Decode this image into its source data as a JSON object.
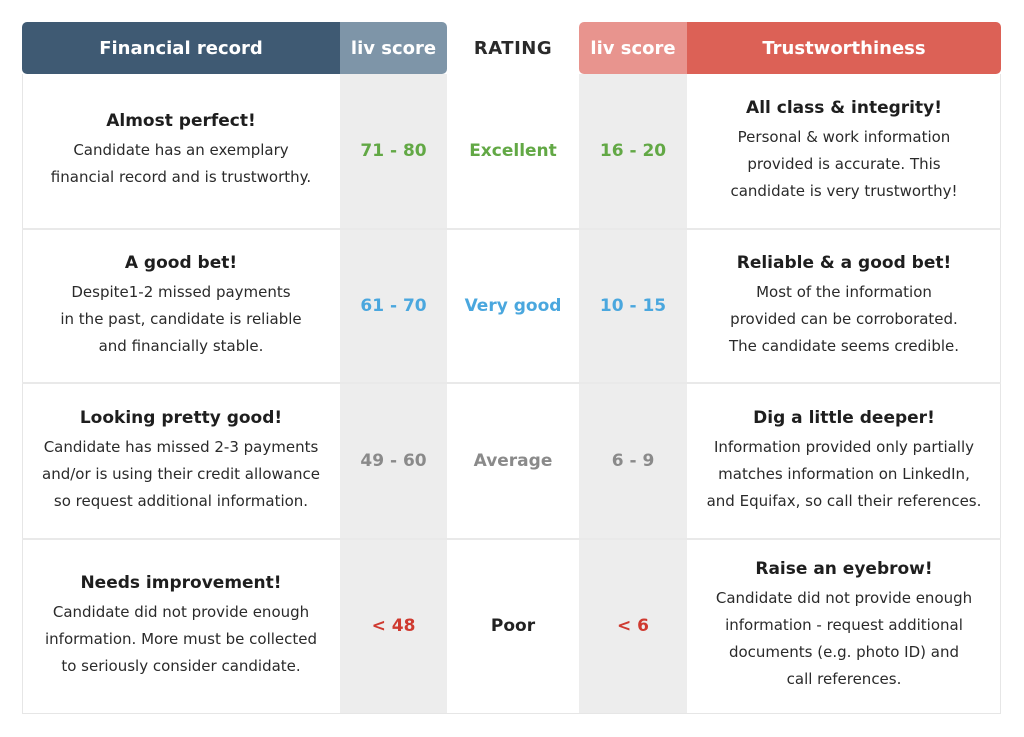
{
  "headers": {
    "financial": "Financial record",
    "liv_score_left": "liv score",
    "rating": "RATING",
    "liv_score_right": "liv score",
    "trust": "Trustworthiness"
  },
  "colors": {
    "financial_header": "#3f5a73",
    "liv_left_header": "#7e95a8",
    "liv_right_header": "#e8948e",
    "trust_header": "#dc6156",
    "excellent": "#62a845",
    "very_good": "#4aa7de",
    "average": "#8a8a8a",
    "poor": "#cf3a30"
  },
  "rows": [
    {
      "fin_title": "Almost perfect!",
      "fin_lines": [
        "Candidate has an exemplary",
        "financial record and is trustworthy."
      ],
      "fin_score": "71 - 80",
      "rating": "Excellent",
      "trust_score": "16 - 20",
      "trust_title": "All class & integrity!",
      "trust_lines": [
        "Personal & work information",
        "provided is accurate. This",
        "candidate is very trustworthy!"
      ]
    },
    {
      "fin_title": "A good bet!",
      "fin_lines": [
        "Despite1-2 missed payments",
        "in the past, candidate is reliable",
        "and financially stable."
      ],
      "fin_score": "61 - 70",
      "rating": "Very good",
      "trust_score": "10 - 15",
      "trust_title": "Reliable & a good bet!",
      "trust_lines": [
        "Most of the information",
        "provided can be corroborated.",
        "The candidate seems credible."
      ]
    },
    {
      "fin_title": "Looking pretty good!",
      "fin_lines": [
        "Candidate has missed 2-3 payments",
        "and/or is using their credit allowance",
        "so request additional information."
      ],
      "fin_score": "49 - 60",
      "rating": "Average",
      "trust_score": "6 - 9",
      "trust_title": "Dig a little deeper!",
      "trust_lines": [
        "Information provided only partially",
        "matches information on LinkedIn,",
        "and Equifax, so call their references."
      ]
    },
    {
      "fin_title": "Needs improvement!",
      "fin_lines": [
        "Candidate did not provide enough",
        "information. More must be collected",
        "to seriously consider candidate."
      ],
      "fin_score": "< 48",
      "rating": "Poor",
      "trust_score": "< 6",
      "trust_title": "Raise an eyebrow!",
      "trust_lines": [
        "Candidate did not provide enough",
        "information - request additional",
        "documents (e.g. photo ID) and",
        "call references."
      ]
    }
  ]
}
